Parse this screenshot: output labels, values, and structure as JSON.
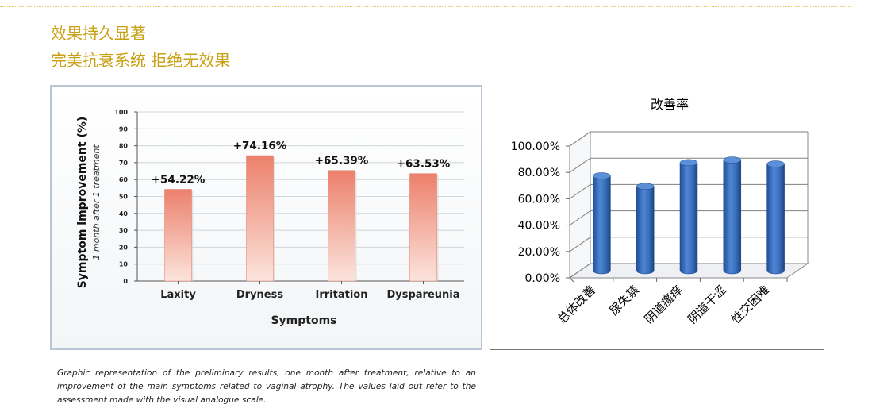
{
  "header": {
    "title": "效果持久显著",
    "subtitle": "完美抗衰系统 拒绝无效果"
  },
  "chart_data": [
    {
      "type": "bar",
      "categories": [
        "Laxity",
        "Dryness",
        "Irritation",
        "Dyspareunia"
      ],
      "values": [
        54.22,
        74.16,
        65.39,
        63.53
      ],
      "data_labels": [
        "+54.22%",
        "+74.16%",
        "+65.39%",
        "+63.53%"
      ],
      "title": "",
      "xlabel": "Symptoms",
      "ylabel": "Symptom improvement (%)",
      "ylabel_sub": "1 month after 1 treatment",
      "ylim": [
        0,
        100
      ],
      "yticks": [
        "0",
        "10",
        "20",
        "30",
        "40",
        "50",
        "60",
        "70",
        "80",
        "90",
        "100"
      ],
      "grid": true,
      "bar_color": "#ef8f7c"
    },
    {
      "type": "bar",
      "title": "改善率",
      "categories": [
        "总体改善",
        "尿失禁",
        "阴道瘙痒",
        "阴道干涩",
        "性交困难"
      ],
      "values": [
        72,
        64,
        82,
        84,
        81
      ],
      "ylim": [
        0,
        100
      ],
      "yticks": [
        "0.00%",
        "20.00%",
        "40.00%",
        "60.00%",
        "80.00%",
        "100.00%"
      ],
      "grid": true,
      "bar_color": "#3f74c2"
    }
  ],
  "caption": "Graphic representation of the preliminary results, one month after treatment, relative to an improvement of the main symptoms related to vaginal atrophy. The values laid out refer to the assessment made with the visual analogue scale."
}
